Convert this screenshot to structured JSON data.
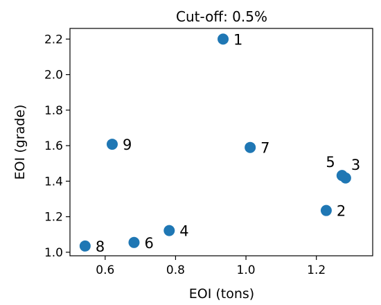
{
  "chart_data": {
    "type": "scatter",
    "title": "Cut-off: 0.5%",
    "xlabel": "EOI (tons)",
    "ylabel": "EOI (grade)",
    "xlim": [
      0.5,
      1.36
    ],
    "ylim": [
      0.98,
      2.26
    ],
    "xticks": [
      0.6,
      0.8,
      1.0,
      1.2
    ],
    "xtick_labels": [
      "0.6",
      "0.8",
      "1.0",
      "1.2"
    ],
    "yticks": [
      1.0,
      1.2,
      1.4,
      1.6,
      1.8,
      2.0,
      2.2
    ],
    "ytick_labels": [
      "1.0",
      "1.2",
      "1.4",
      "1.6",
      "1.8",
      "2.0",
      "2.2"
    ],
    "grid": false,
    "marker_color": "#1f77b4",
    "points": [
      {
        "label": "1",
        "x": 0.935,
        "y": 2.2
      },
      {
        "label": "2",
        "x": 1.228,
        "y": 1.235
      },
      {
        "label": "3",
        "x": 1.283,
        "y": 1.418
      },
      {
        "label": "4",
        "x": 0.782,
        "y": 1.122
      },
      {
        "label": "5",
        "x": 1.273,
        "y": 1.432
      },
      {
        "label": "6",
        "x": 0.682,
        "y": 1.055
      },
      {
        "label": "7",
        "x": 1.012,
        "y": 1.59
      },
      {
        "label": "8",
        "x": 0.543,
        "y": 1.035
      },
      {
        "label": "9",
        "x": 0.62,
        "y": 1.608
      }
    ]
  }
}
